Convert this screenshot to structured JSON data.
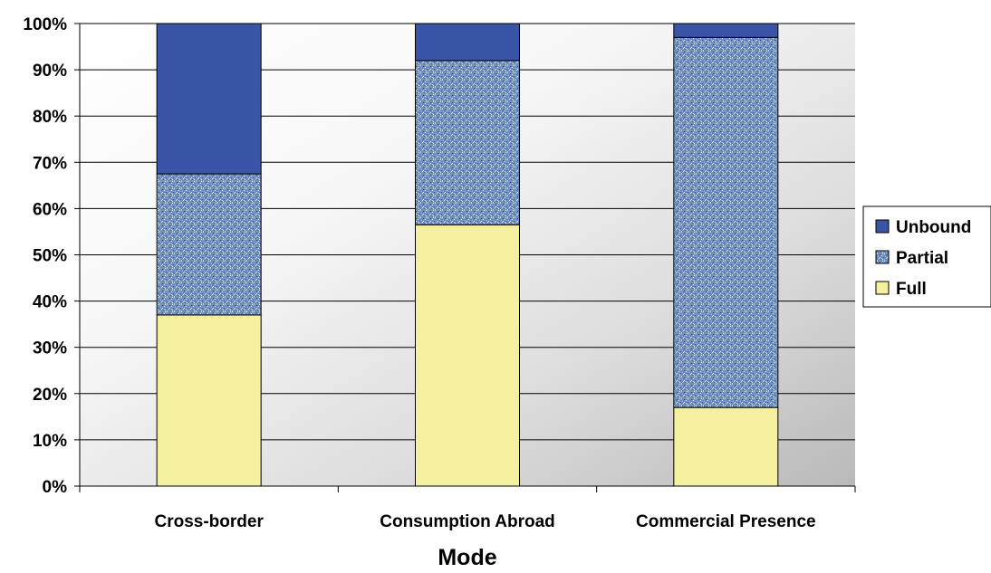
{
  "chart_data": {
    "type": "bar",
    "stacked": true,
    "percent_axis": true,
    "categories": [
      "Cross-border",
      "Consumption Abroad",
      "Commercial Presence"
    ],
    "series": [
      {
        "name": "Full",
        "values": [
          37,
          56.5,
          17
        ],
        "color": "#F5F0A0",
        "pattern": "solid"
      },
      {
        "name": "Partial",
        "values": [
          30.5,
          35.5,
          80
        ],
        "color": "#6F8FC2",
        "pattern": "speckled"
      },
      {
        "name": "Unbound",
        "values": [
          32.5,
          8,
          3
        ],
        "color": "#3A55A8",
        "pattern": "solid"
      }
    ],
    "legend_order": [
      "Unbound",
      "Partial",
      "Full"
    ],
    "xlabel": "Mode",
    "ylabel": "",
    "title": "",
    "ylim": [
      0,
      100
    ],
    "yticks": [
      "0%",
      "10%",
      "20%",
      "30%",
      "40%",
      "50%",
      "60%",
      "70%",
      "80%",
      "90%",
      "100%"
    ],
    "grid": true,
    "legend_position": "right",
    "plot_background": "gradient white to gray"
  }
}
